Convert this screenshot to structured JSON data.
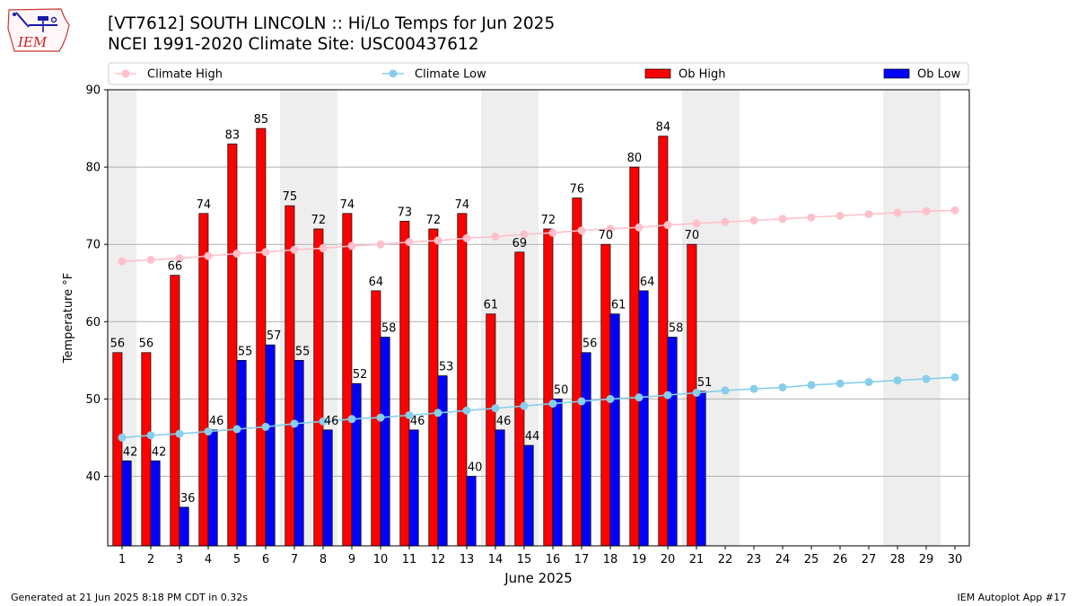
{
  "header": {
    "title_line1": "[VT7612] SOUTH LINCOLN :: Hi/Lo Temps for Jun 2025",
    "title_line2": "NCEI 1991-2020 Climate Site: USC00437612",
    "logo_text": "IEM",
    "logo_icon": "iem-iowa-weather-logo-icon"
  },
  "footer": {
    "generated": "Generated at 21 Jun 2025 8:18 PM CDT in 0.32s",
    "app": "IEM Autoplot App #17"
  },
  "colors": {
    "ob_high": "#ff0000",
    "ob_low": "#0000ff",
    "climate_high": "#ffc0cb",
    "climate_low": "#87ceeb",
    "weekend_shade": "#eeeeee",
    "grid": "#b0b0b0"
  },
  "chart_data": {
    "type": "bar",
    "title": "[VT7612] SOUTH LINCOLN :: Hi/Lo Temps for Jun 2025",
    "xlabel": "June 2025",
    "ylabel": "Temperature °F",
    "ylim": [
      31,
      90
    ],
    "yticks": [
      40,
      50,
      60,
      70,
      80,
      90
    ],
    "grid": "horizontal",
    "legend_position": "top",
    "days": [
      1,
      2,
      3,
      4,
      5,
      6,
      7,
      8,
      9,
      10,
      11,
      12,
      13,
      14,
      15,
      16,
      17,
      18,
      19,
      20,
      21,
      22,
      23,
      24,
      25,
      26,
      27,
      28,
      29,
      30
    ],
    "weekend_shading": [
      [
        1,
        1
      ],
      [
        7,
        8
      ],
      [
        14,
        15
      ],
      [
        21,
        22
      ],
      [
        28,
        29
      ]
    ],
    "series": [
      {
        "name": "Climate High",
        "kind": "line",
        "values": [
          67.8,
          68.0,
          68.2,
          68.5,
          68.8,
          69.0,
          69.3,
          69.5,
          69.8,
          70.0,
          70.3,
          70.5,
          70.8,
          71.0,
          71.3,
          71.5,
          71.8,
          72.0,
          72.2,
          72.5,
          72.7,
          72.9,
          73.1,
          73.3,
          73.5,
          73.7,
          73.9,
          74.1,
          74.3,
          74.4
        ]
      },
      {
        "name": "Climate Low",
        "kind": "line",
        "values": [
          45.0,
          45.3,
          45.5,
          45.8,
          46.1,
          46.4,
          46.8,
          47.1,
          47.4,
          47.6,
          47.9,
          48.2,
          48.5,
          48.8,
          49.1,
          49.4,
          49.7,
          50.0,
          50.2,
          50.5,
          50.8,
          51.1,
          51.3,
          51.5,
          51.8,
          52.0,
          52.2,
          52.4,
          52.6,
          52.8
        ]
      },
      {
        "name": "Ob High",
        "kind": "bar",
        "values": [
          56,
          56,
          66,
          74,
          83,
          85,
          75,
          72,
          74,
          64,
          73,
          72,
          74,
          61,
          69,
          72,
          76,
          70,
          80,
          84,
          70
        ]
      },
      {
        "name": "Ob Low",
        "kind": "bar",
        "values": [
          42,
          42,
          36,
          46,
          55,
          57,
          55,
          46,
          52,
          58,
          46,
          53,
          40,
          46,
          44,
          50,
          56,
          61,
          64,
          58,
          51
        ]
      }
    ]
  }
}
